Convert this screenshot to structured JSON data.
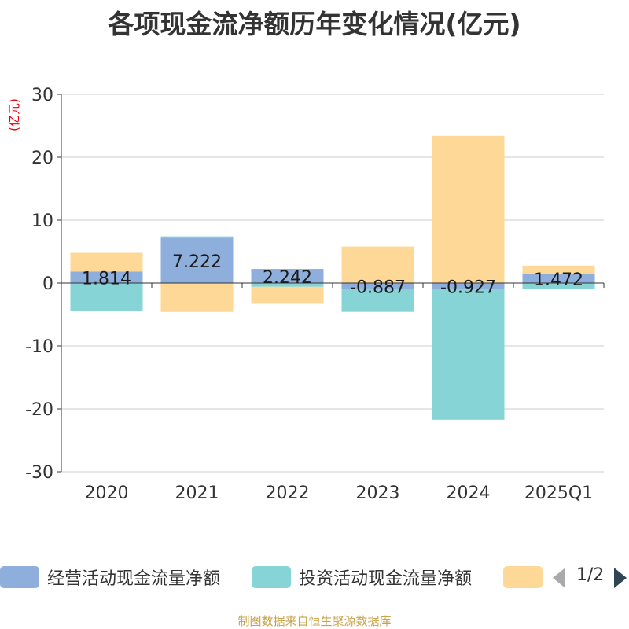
{
  "chart_data": {
    "type": "bar",
    "stacked": true,
    "title": "各项现金流净额历年变化情况(亿元)",
    "ylabel": "(亿元)",
    "xlabel": "",
    "ylim": [
      -30,
      30
    ],
    "yticks": [
      30,
      20,
      10,
      0,
      -10,
      -20,
      -30
    ],
    "categories": [
      "2020",
      "2021",
      "2022",
      "2023",
      "2024",
      "2025Q1"
    ],
    "series": [
      {
        "name": "经营活动现金流量净额",
        "color": "#8eaedb",
        "values": [
          1.814,
          7.222,
          2.242,
          -0.887,
          -0.927,
          1.472
        ],
        "labels": [
          "1.814",
          "7.222",
          "2.242",
          "-0.887",
          "-0.927",
          "1.472"
        ]
      },
      {
        "name": "投资活动现金流量净额",
        "color": "#86d4d6",
        "values": [
          -4.4,
          0.2,
          -0.6,
          -3.7,
          -20.8,
          -1.0
        ]
      },
      {
        "name": "",
        "color": "#fed897",
        "values": [
          3.0,
          -4.6,
          -2.7,
          5.8,
          23.4,
          1.3
        ]
      }
    ]
  },
  "legend": {
    "page": "1/2"
  },
  "source": "制图数据来自恒生聚源数据库"
}
